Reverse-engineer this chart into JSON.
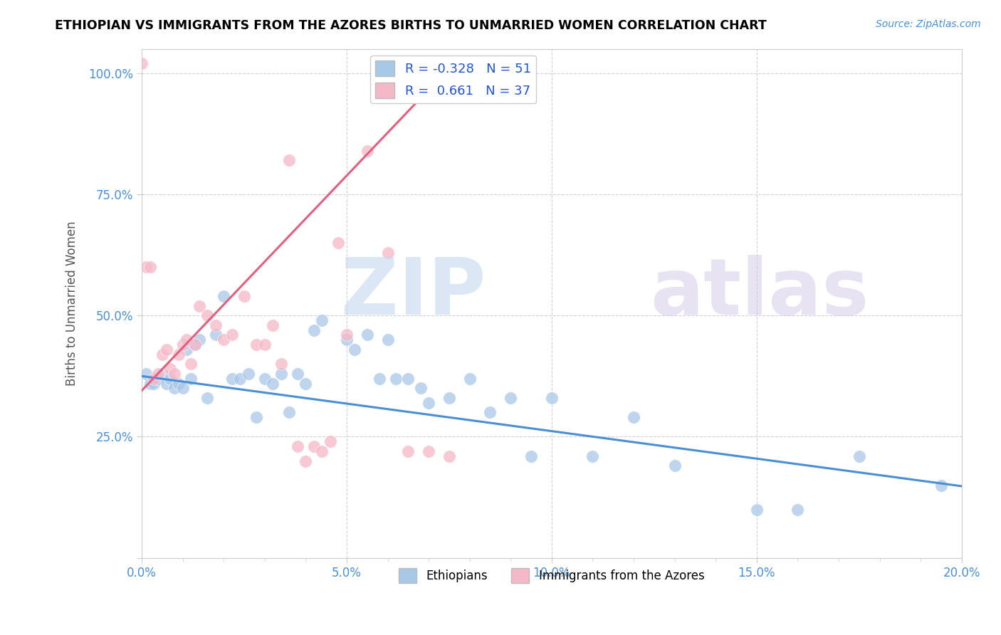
{
  "title": "ETHIOPIAN VS IMMIGRANTS FROM THE AZORES BIRTHS TO UNMARRIED WOMEN CORRELATION CHART",
  "source": "Source: ZipAtlas.com",
  "ylabel": "Births to Unmarried Women",
  "xlabel_ticks": [
    "0.0%",
    "",
    "",
    "",
    "",
    "5.0%",
    "",
    "",
    "",
    "",
    "10.0%",
    "",
    "",
    "",
    "",
    "15.0%",
    "",
    "",
    "",
    "",
    "20.0%"
  ],
  "xlabel_vals": [
    0.0,
    0.01,
    0.02,
    0.03,
    0.04,
    0.05,
    0.06,
    0.07,
    0.08,
    0.09,
    0.1,
    0.11,
    0.12,
    0.13,
    0.14,
    0.15,
    0.16,
    0.17,
    0.18,
    0.19,
    0.2
  ],
  "ylabel_ticks": [
    "",
    "25.0%",
    "50.0%",
    "75.0%",
    "100.0%"
  ],
  "ylabel_vals": [
    0.0,
    0.25,
    0.5,
    0.75,
    1.0
  ],
  "xmin": 0.0,
  "xmax": 0.2,
  "ymin": 0.0,
  "ymax": 1.05,
  "blue_R": -0.328,
  "blue_N": 51,
  "pink_R": 0.661,
  "pink_N": 37,
  "blue_color": "#a8c8e8",
  "pink_color": "#f5b8c8",
  "blue_line_color": "#4a8fd4",
  "pink_line_color": "#e06080",
  "blue_scatter_x": [
    0.001,
    0.002,
    0.003,
    0.004,
    0.005,
    0.006,
    0.007,
    0.008,
    0.009,
    0.01,
    0.011,
    0.012,
    0.013,
    0.014,
    0.016,
    0.018,
    0.02,
    0.022,
    0.024,
    0.026,
    0.028,
    0.03,
    0.032,
    0.034,
    0.036,
    0.038,
    0.04,
    0.042,
    0.044,
    0.05,
    0.052,
    0.055,
    0.058,
    0.06,
    0.062,
    0.065,
    0.068,
    0.07,
    0.075,
    0.08,
    0.085,
    0.09,
    0.095,
    0.1,
    0.11,
    0.12,
    0.13,
    0.15,
    0.16,
    0.175,
    0.195
  ],
  "blue_scatter_y": [
    0.38,
    0.36,
    0.36,
    0.37,
    0.38,
    0.36,
    0.37,
    0.35,
    0.36,
    0.35,
    0.43,
    0.37,
    0.44,
    0.45,
    0.33,
    0.46,
    0.54,
    0.37,
    0.37,
    0.38,
    0.29,
    0.37,
    0.36,
    0.38,
    0.3,
    0.38,
    0.36,
    0.47,
    0.49,
    0.45,
    0.43,
    0.46,
    0.37,
    0.45,
    0.37,
    0.37,
    0.35,
    0.32,
    0.33,
    0.37,
    0.3,
    0.33,
    0.21,
    0.33,
    0.21,
    0.29,
    0.19,
    0.1,
    0.1,
    0.21,
    0.15
  ],
  "pink_scatter_x": [
    0.0,
    0.001,
    0.002,
    0.003,
    0.004,
    0.005,
    0.006,
    0.007,
    0.008,
    0.009,
    0.01,
    0.011,
    0.012,
    0.013,
    0.014,
    0.016,
    0.018,
    0.02,
    0.022,
    0.025,
    0.028,
    0.03,
    0.032,
    0.034,
    0.036,
    0.038,
    0.04,
    0.042,
    0.044,
    0.046,
    0.048,
    0.05,
    0.055,
    0.06,
    0.065,
    0.07,
    0.075
  ],
  "pink_scatter_y": [
    1.02,
    0.6,
    0.6,
    0.37,
    0.38,
    0.42,
    0.43,
    0.39,
    0.38,
    0.42,
    0.44,
    0.45,
    0.4,
    0.44,
    0.52,
    0.5,
    0.48,
    0.45,
    0.46,
    0.54,
    0.44,
    0.44,
    0.48,
    0.4,
    0.82,
    0.23,
    0.2,
    0.23,
    0.22,
    0.24,
    0.65,
    0.46,
    0.84,
    0.63,
    0.22,
    0.22,
    0.21
  ],
  "blue_line_x0": 0.0,
  "blue_line_x1": 0.2,
  "blue_line_y0": 0.375,
  "blue_line_y1": 0.148,
  "pink_line_x0": 0.0,
  "pink_line_x1": 0.075,
  "pink_line_y0": 0.345,
  "pink_line_y1": 1.01
}
